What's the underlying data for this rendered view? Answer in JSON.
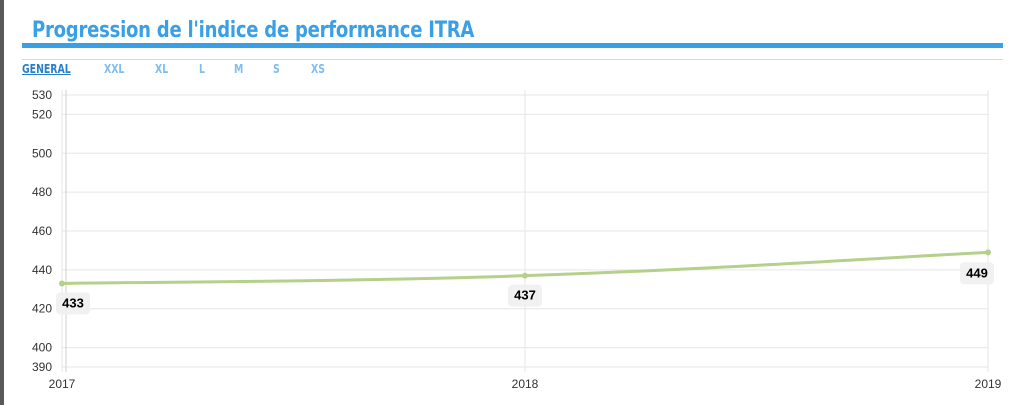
{
  "header": {
    "title": "Progression de l'indice de performance ITRA"
  },
  "tabs": [
    "GENERAL",
    "XXL",
    "XL",
    "L",
    "M",
    "S",
    "XS"
  ],
  "colors": {
    "accent": "#3aa0e6",
    "line": "#b5d08a",
    "grid": "#e6e6e6"
  },
  "chart_data": {
    "type": "line",
    "categories": [
      "2017",
      "2018",
      "2019"
    ],
    "series": [
      {
        "values": [
          433,
          437,
          449
        ]
      }
    ],
    "data_labels": [
      "433",
      "437",
      "449"
    ],
    "y_ticks": [
      390,
      400,
      420,
      440,
      460,
      480,
      500,
      520,
      530
    ],
    "ylim": [
      390,
      530
    ],
    "grid": true
  }
}
